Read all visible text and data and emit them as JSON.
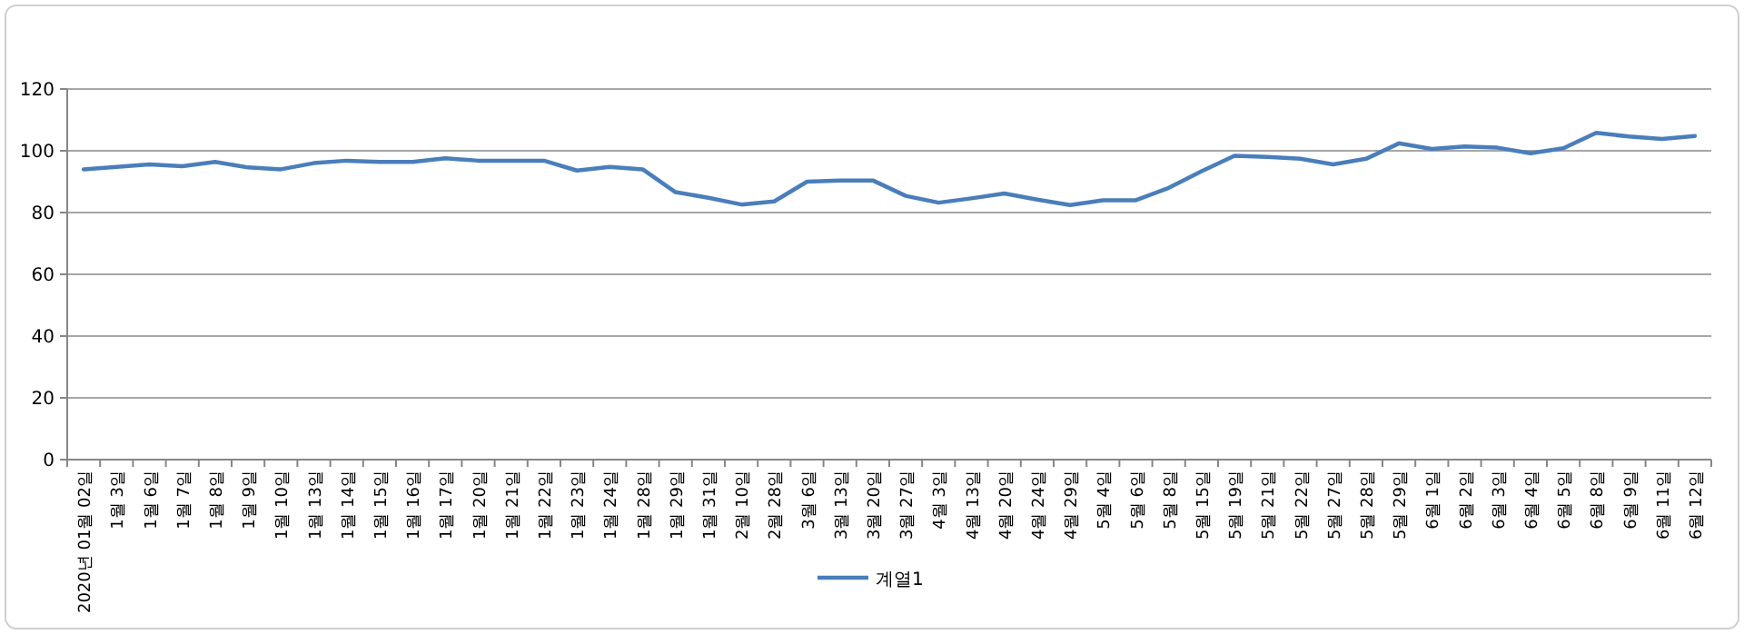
{
  "chart_data": {
    "type": "line",
    "categories": [
      "2020년 01월 02일",
      "1월 3일",
      "1월 6일",
      "1월 7일",
      "1월 8일",
      "1월 9일",
      "1월 10일",
      "1월 13일",
      "1월 14일",
      "1월 15일",
      "1월 16일",
      "1월 17일",
      "1월 20일",
      "1월 21일",
      "1월 22일",
      "1월 23일",
      "1월 24일",
      "1월 28일",
      "1월 29일",
      "1월 31일",
      "2월 10일",
      "2월 28일",
      "3월 6일",
      "3월 13일",
      "3월 20일",
      "3월 27일",
      "4월 3일",
      "4월 13일",
      "4월 20일",
      "4월 24일",
      "4월 29일",
      "5월 4일",
      "5월 6일",
      "5월 8일",
      "5월 15일",
      "5월 19일",
      "5월 21일",
      "5월 22일",
      "5월 27일",
      "5월 28일",
      "5월 29일",
      "6월 1일",
      "6월 2일",
      "6월 3일",
      "6월 4일",
      "6월 5일",
      "6월 8일",
      "6월 9일",
      "6월 11일",
      "6월 12일"
    ],
    "series": [
      {
        "name": "계열1",
        "color": "#4a7ebb",
        "values": [
          94,
          94.8,
          95.6,
          95,
          96.4,
          94.6,
          94,
          96,
          96.8,
          96.4,
          96.4,
          97.6,
          96.8,
          96.8,
          96.8,
          93.6,
          94.8,
          94,
          86.6,
          84.8,
          82.6,
          83.6,
          90,
          90.4,
          90.4,
          85.4,
          83.2,
          84.6,
          86.2,
          84.2,
          82.4,
          84,
          84,
          88,
          93.4,
          98.4,
          98,
          97.4,
          95.6,
          97.4,
          102.4,
          100.6,
          101.4,
          101,
          99.2,
          100.8,
          105.8,
          104.6,
          103.8,
          104.8
        ]
      }
    ],
    "ylim": [
      0,
      120
    ],
    "yticks": [
      0,
      20,
      40,
      60,
      80,
      100,
      120
    ],
    "grid": "y",
    "legend": "bottom"
  }
}
